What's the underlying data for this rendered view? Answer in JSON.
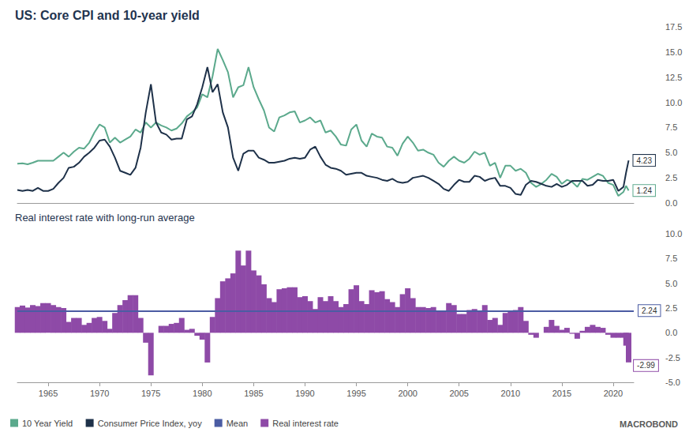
{
  "chart_data": [
    {
      "type": "line",
      "title": "US: Core CPI and 10-year yield",
      "x": [
        1962,
        1962.5,
        1963,
        1963.5,
        1964,
        1964.5,
        1965,
        1965.5,
        1966,
        1966.5,
        1967,
        1967.5,
        1968,
        1968.5,
        1969,
        1969.5,
        1970,
        1970.5,
        1971,
        1971.5,
        1972,
        1972.5,
        1973,
        1973.5,
        1974,
        1974.5,
        1975,
        1975.5,
        1976,
        1976.5,
        1977,
        1977.5,
        1978,
        1978.5,
        1979,
        1979.5,
        1980,
        1980.5,
        1981,
        1981.5,
        1982,
        1982.5,
        1983,
        1983.5,
        1984,
        1984.5,
        1985,
        1985.5,
        1986,
        1986.5,
        1987,
        1987.5,
        1988,
        1988.5,
        1989,
        1989.5,
        1990,
        1990.5,
        1991,
        1991.5,
        1992,
        1992.5,
        1993,
        1993.5,
        1994,
        1994.5,
        1995,
        1995.5,
        1996,
        1996.5,
        1997,
        1997.5,
        1998,
        1998.5,
        1999,
        1999.5,
        2000,
        2000.5,
        2001,
        2001.5,
        2002,
        2002.5,
        2003,
        2003.5,
        2004,
        2004.5,
        2005,
        2005.5,
        2006,
        2006.5,
        2007,
        2007.5,
        2008,
        2008.5,
        2009,
        2009.5,
        2010,
        2010.5,
        2011,
        2011.5,
        2012,
        2012.5,
        2013,
        2013.5,
        2014,
        2014.5,
        2015,
        2015.5,
        2016,
        2016.5,
        2017,
        2017.5,
        2018,
        2018.5,
        2019,
        2019.5,
        2020,
        2020.5,
        2021,
        2021.25,
        2021.5
      ],
      "xlim": [
        1962,
        2022
      ],
      "xticks": [
        1965,
        1970,
        1975,
        1980,
        1985,
        1990,
        1995,
        2000,
        2005,
        2010,
        2015,
        2020
      ],
      "ylim": [
        0,
        17.5
      ],
      "yticks": [
        {
          "value": 0,
          "label": "0.0"
        },
        2.5,
        {
          "value": 5,
          "label": "5.0"
        },
        7.5,
        {
          "value": 10,
          "label": "10.0"
        },
        12.5,
        {
          "value": 15,
          "label": "15.0"
        },
        17.5
      ],
      "grid": false,
      "tick_labels": "y",
      "legend": "bottom-left",
      "series": [
        {
          "name": "10 Year Yield",
          "color": "#5ba98c",
          "values": [
            3.9,
            3.95,
            3.85,
            4.0,
            4.2,
            4.2,
            4.2,
            4.2,
            4.6,
            5.0,
            4.6,
            5.1,
            5.5,
            5.4,
            6.0,
            7.0,
            7.8,
            7.5,
            6.0,
            6.5,
            6.0,
            6.3,
            6.6,
            7.3,
            7.0,
            8.0,
            7.5,
            8.0,
            7.7,
            7.5,
            7.2,
            7.4,
            7.9,
            8.6,
            9.0,
            9.5,
            10.8,
            10.5,
            12.6,
            15.3,
            14.2,
            13.0,
            10.5,
            11.5,
            11.7,
            13.5,
            11.5,
            10.3,
            9.2,
            7.5,
            7.1,
            8.5,
            8.7,
            9.0,
            9.1,
            8.0,
            8.2,
            8.5,
            8.0,
            8.2,
            7.0,
            7.2,
            6.6,
            5.8,
            5.7,
            7.3,
            7.8,
            6.2,
            5.6,
            6.9,
            6.6,
            6.5,
            5.6,
            5.5,
            4.7,
            5.9,
            6.6,
            6.0,
            5.2,
            5.3,
            5.0,
            4.8,
            4.0,
            3.6,
            4.2,
            4.6,
            4.2,
            4.0,
            4.4,
            5.1,
            4.8,
            5.0,
            3.7,
            4.0,
            2.5,
            3.7,
            3.7,
            3.2,
            3.4,
            3.0,
            2.0,
            1.6,
            1.9,
            2.3,
            2.9,
            2.6,
            1.9,
            2.3,
            2.1,
            1.6,
            2.4,
            2.3,
            2.6,
            2.9,
            2.7,
            2.0,
            1.8,
            0.7,
            1.1,
            1.7,
            1.24
          ]
        },
        {
          "name": "Consumer Price Index, yoy",
          "color": "#1e3149",
          "values": [
            1.3,
            1.2,
            1.3,
            1.2,
            1.5,
            1.2,
            1.2,
            1.4,
            2.0,
            2.5,
            3.5,
            3.6,
            4.0,
            4.6,
            5.0,
            5.5,
            6.2,
            6.3,
            5.6,
            4.5,
            3.2,
            3.0,
            2.8,
            3.5,
            5.5,
            9.0,
            11.8,
            8.0,
            7.0,
            6.8,
            6.3,
            6.4,
            6.4,
            8.3,
            8.6,
            9.8,
            11.5,
            13.5,
            11.0,
            11.8,
            9.0,
            7.5,
            4.5,
            3.2,
            4.9,
            5.2,
            5.2,
            4.5,
            4.3,
            4.0,
            4.0,
            4.1,
            4.2,
            4.4,
            4.5,
            4.4,
            4.5,
            5.3,
            5.6,
            4.6,
            3.8,
            3.5,
            3.4,
            3.2,
            2.8,
            2.9,
            3.0,
            3.0,
            2.7,
            2.6,
            2.5,
            2.3,
            2.2,
            2.4,
            2.1,
            2.0,
            2.1,
            2.5,
            2.6,
            2.7,
            2.5,
            2.2,
            1.9,
            1.4,
            1.2,
            1.8,
            2.3,
            2.1,
            2.1,
            2.7,
            2.6,
            2.2,
            2.4,
            2.5,
            1.7,
            1.7,
            1.5,
            0.9,
            0.8,
            1.8,
            2.2,
            2.1,
            1.9,
            1.7,
            1.6,
            1.9,
            1.6,
            1.8,
            2.2,
            2.2,
            2.2,
            1.7,
            1.8,
            2.3,
            2.2,
            2.2,
            2.3,
            1.2,
            1.6,
            3.0,
            4.23
          ]
        }
      ]
    },
    {
      "type": "bar",
      "title": "Real interest rate with long-run average",
      "annotations": [
        "MACROBOND"
      ],
      "x": [
        1962,
        1962.5,
        1963,
        1963.5,
        1964,
        1964.5,
        1965,
        1965.5,
        1966,
        1966.5,
        1967,
        1967.5,
        1968,
        1968.5,
        1969,
        1969.5,
        1970,
        1970.5,
        1971,
        1971.5,
        1972,
        1972.5,
        1973,
        1973.5,
        1974,
        1974.5,
        1975,
        1975.5,
        1976,
        1976.5,
        1977,
        1977.5,
        1978,
        1978.5,
        1979,
        1979.5,
        1980,
        1980.5,
        1981,
        1981.5,
        1982,
        1982.5,
        1983,
        1983.5,
        1984,
        1984.5,
        1985,
        1985.5,
        1986,
        1986.5,
        1987,
        1987.5,
        1988,
        1988.5,
        1989,
        1989.5,
        1990,
        1990.5,
        1991,
        1991.5,
        1992,
        1992.5,
        1993,
        1993.5,
        1994,
        1994.5,
        1995,
        1995.5,
        1996,
        1996.5,
        1997,
        1997.5,
        1998,
        1998.5,
        1999,
        1999.5,
        2000,
        2000.5,
        2001,
        2001.5,
        2002,
        2002.5,
        2003,
        2003.5,
        2004,
        2004.5,
        2005,
        2005.5,
        2006,
        2006.5,
        2007,
        2007.5,
        2008,
        2008.5,
        2009,
        2009.5,
        2010,
        2010.5,
        2011,
        2011.5,
        2012,
        2012.5,
        2013,
        2013.5,
        2014,
        2014.5,
        2015,
        2015.5,
        2016,
        2016.5,
        2017,
        2017.5,
        2018,
        2018.5,
        2019,
        2019.5,
        2020,
        2020.5,
        2021,
        2021.25,
        2021.5
      ],
      "xlim": [
        1962,
        2022
      ],
      "xticks": [
        1965,
        1970,
        1975,
        1980,
        1985,
        1990,
        1995,
        2000,
        2005,
        2010,
        2015,
        2020
      ],
      "ylim": [
        -5,
        10
      ],
      "yticks": [
        {
          "value": -5,
          "label": "-5.0"
        },
        -2.5,
        {
          "value": 0,
          "label": "0.0"
        },
        2.5,
        {
          "value": 5,
          "label": "5.0"
        },
        7.5,
        {
          "value": 10,
          "label": "10.0"
        }
      ],
      "grid": false,
      "series": [
        {
          "name": "Mean",
          "type": "line",
          "color": "#4b5ca3",
          "value": 2.24
        },
        {
          "name": "Real interest rate",
          "type": "bar",
          "color": "#8e4aa7",
          "values": [
            2.6,
            2.75,
            2.55,
            2.8,
            2.7,
            3.0,
            3.0,
            2.8,
            2.6,
            2.5,
            1.1,
            1.5,
            1.5,
            0.8,
            1.0,
            1.5,
            1.6,
            1.2,
            0.4,
            2.0,
            2.8,
            3.3,
            3.8,
            3.8,
            1.5,
            -1.0,
            -4.3,
            0.0,
            0.7,
            0.7,
            0.9,
            1.0,
            1.5,
            0.3,
            0.4,
            -0.3,
            -0.7,
            -3.0,
            1.6,
            3.5,
            5.2,
            5.5,
            6.0,
            8.3,
            6.8,
            8.3,
            6.3,
            5.8,
            4.9,
            3.5,
            3.1,
            4.4,
            4.5,
            4.6,
            4.6,
            3.6,
            3.7,
            3.2,
            2.4,
            3.6,
            3.2,
            3.7,
            3.2,
            2.6,
            2.9,
            4.4,
            4.8,
            3.2,
            2.9,
            4.3,
            4.1,
            4.2,
            3.4,
            3.1,
            2.6,
            3.9,
            4.5,
            3.5,
            2.6,
            2.6,
            2.5,
            2.6,
            2.1,
            2.2,
            3.0,
            2.8,
            1.9,
            1.9,
            2.3,
            2.4,
            2.2,
            2.8,
            1.3,
            1.5,
            0.8,
            2.0,
            2.2,
            2.3,
            2.6,
            1.2,
            -0.2,
            -0.5,
            0.0,
            0.6,
            1.3,
            0.7,
            0.3,
            0.5,
            -0.1,
            -0.6,
            0.2,
            0.6,
            0.8,
            0.6,
            0.5,
            -0.2,
            -0.5,
            -0.5,
            -0.5,
            -1.3,
            -2.99
          ]
        }
      ]
    }
  ]
}
